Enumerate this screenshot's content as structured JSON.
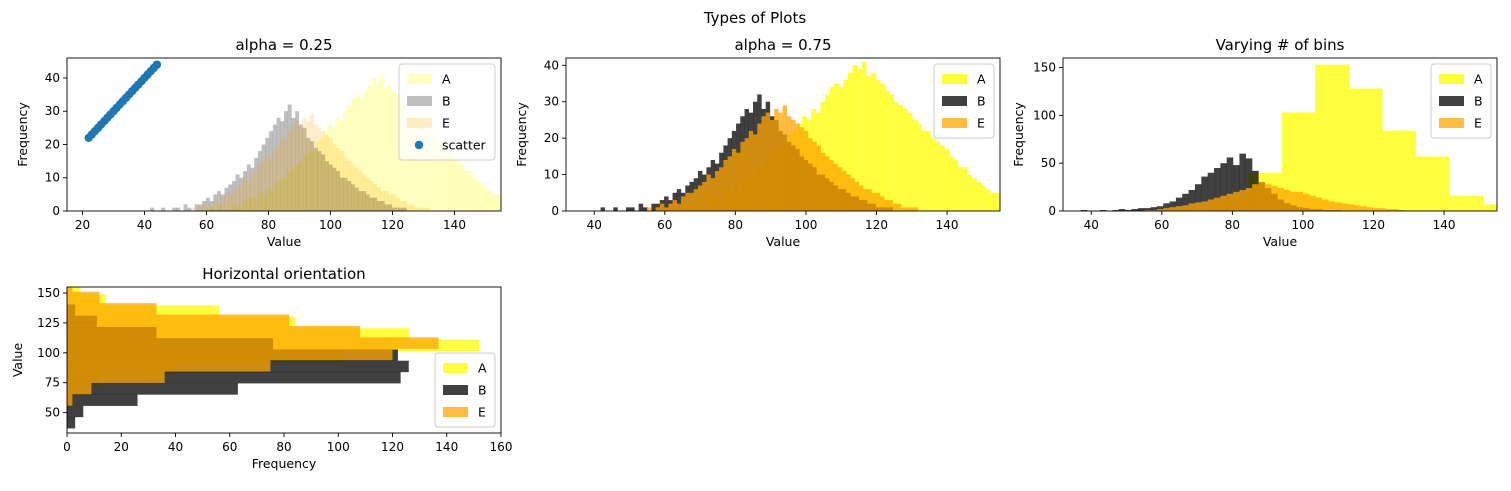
{
  "figure": {
    "suptitle": "Types of Plots"
  },
  "chart_data": [
    {
      "type": "histogram-scatter",
      "title": "alpha = 0.25",
      "xlabel": "Value",
      "ylabel": "Frequency",
      "xlim": [
        15,
        155
      ],
      "ylim": [
        0,
        46
      ],
      "xticks": [
        20,
        40,
        60,
        80,
        100,
        120,
        140
      ],
      "yticks": [
        0,
        10,
        20,
        30,
        40
      ],
      "legend": {
        "position": "upper right"
      },
      "series": [
        {
          "name": "A",
          "kind": "hist",
          "color": "#ffff00",
          "alpha": 0.25,
          "start": 56,
          "width": 1.3,
          "values": [
            0,
            0,
            0,
            0,
            1,
            0,
            2,
            0,
            1,
            2,
            2,
            1,
            3,
            4,
            4,
            3,
            6,
            5,
            7,
            6,
            9,
            9,
            10,
            12,
            13,
            14,
            15,
            17,
            18,
            18,
            21,
            22,
            24,
            26,
            25,
            28,
            27,
            30,
            32,
            34,
            35,
            34,
            36,
            38,
            40,
            39,
            41,
            37,
            38,
            36,
            35,
            33,
            32,
            30,
            29,
            28,
            27,
            25,
            24,
            22,
            22,
            20,
            19,
            18,
            17,
            15,
            14,
            12,
            12,
            10,
            9,
            8,
            7,
            6,
            5,
            5,
            4,
            3,
            3,
            2,
            2,
            1,
            1,
            1
          ]
        },
        {
          "name": "B",
          "kind": "hist",
          "color": "#000000",
          "alpha": 0.25,
          "start": 37,
          "width": 1.2,
          "values": [
            0,
            0,
            0,
            0,
            1,
            0,
            0,
            1,
            0,
            0,
            1,
            1,
            0,
            2,
            1,
            0,
            2,
            2,
            3,
            4,
            3,
            5,
            6,
            5,
            7,
            8,
            9,
            11,
            10,
            12,
            14,
            13,
            16,
            18,
            20,
            22,
            24,
            26,
            28,
            27,
            30,
            32,
            28,
            30,
            26,
            25,
            22,
            21,
            19,
            18,
            17,
            15,
            14,
            13,
            12,
            10,
            10,
            9,
            8,
            7,
            6,
            6,
            5,
            4,
            4,
            3,
            3,
            2,
            2,
            1,
            1,
            1,
            1
          ]
        },
        {
          "name": "E",
          "kind": "hist",
          "color": "#ffa500",
          "alpha": 0.2,
          "start": 55,
          "width": 1.2,
          "values": [
            1,
            0,
            1,
            2,
            1,
            2,
            3,
            2,
            4,
            5,
            5,
            6,
            7,
            8,
            10,
            9,
            11,
            12,
            14,
            15,
            17,
            16,
            19,
            20,
            22,
            21,
            24,
            26,
            27,
            25,
            28,
            27,
            29,
            26,
            25,
            24,
            23,
            22,
            20,
            19,
            18,
            16,
            15,
            14,
            13,
            12,
            11,
            10,
            9,
            8,
            7,
            6,
            6,
            5,
            5,
            4,
            3,
            3,
            2,
            2,
            1,
            1,
            1,
            1
          ]
        },
        {
          "name": "scatter",
          "kind": "scatter",
          "color": "#1f77b4",
          "x": [
            22,
            23,
            24,
            25,
            26,
            27,
            28,
            29,
            30,
            31,
            32,
            33,
            34,
            35,
            36,
            37,
            38,
            39,
            40,
            41,
            42,
            43,
            44
          ],
          "y": [
            22,
            23,
            24,
            25,
            26,
            27,
            28,
            29,
            30,
            31,
            32,
            33,
            34,
            35,
            36,
            37,
            38,
            39,
            40,
            41,
            42,
            43,
            44
          ]
        }
      ]
    },
    {
      "type": "histogram",
      "title": "alpha = 0.75",
      "xlabel": "Value",
      "ylabel": "Frequency",
      "xlim": [
        32,
        155
      ],
      "ylim": [
        0,
        42
      ],
      "xticks": [
        40,
        60,
        80,
        100,
        120,
        140
      ],
      "yticks": [
        0,
        10,
        20,
        30,
        40
      ],
      "legend": {
        "position": "upper right"
      },
      "series": [
        {
          "name": "A",
          "kind": "hist",
          "color": "#ffff00",
          "alpha": 0.75,
          "start": 56,
          "width": 1.3,
          "values": [
            0,
            0,
            0,
            0,
            1,
            0,
            2,
            0,
            1,
            2,
            2,
            1,
            3,
            4,
            4,
            3,
            6,
            5,
            7,
            6,
            9,
            9,
            10,
            12,
            13,
            14,
            15,
            17,
            18,
            18,
            21,
            22,
            24,
            26,
            25,
            28,
            27,
            30,
            32,
            34,
            35,
            34,
            36,
            38,
            40,
            39,
            41,
            37,
            38,
            36,
            35,
            33,
            32,
            30,
            29,
            28,
            27,
            25,
            24,
            22,
            22,
            20,
            19,
            18,
            17,
            15,
            14,
            12,
            12,
            10,
            9,
            8,
            7,
            6,
            5,
            5,
            4,
            3,
            3,
            2,
            2,
            1,
            1,
            1
          ]
        },
        {
          "name": "B",
          "kind": "hist",
          "color": "#000000",
          "alpha": 0.75,
          "start": 37,
          "width": 1.2,
          "values": [
            0,
            0,
            0,
            0,
            1,
            0,
            0,
            1,
            0,
            0,
            1,
            1,
            0,
            2,
            1,
            0,
            2,
            2,
            3,
            4,
            3,
            5,
            6,
            5,
            7,
            8,
            9,
            11,
            10,
            12,
            14,
            13,
            16,
            18,
            20,
            22,
            24,
            26,
            28,
            27,
            30,
            32,
            28,
            30,
            26,
            25,
            22,
            21,
            19,
            18,
            17,
            15,
            14,
            13,
            12,
            10,
            10,
            9,
            8,
            7,
            6,
            6,
            5,
            4,
            4,
            3,
            3,
            2,
            2,
            1,
            1,
            1,
            1
          ]
        },
        {
          "name": "E",
          "kind": "hist",
          "color": "#ffa500",
          "alpha": 0.75,
          "start": 55,
          "width": 1.2,
          "values": [
            1,
            0,
            1,
            2,
            1,
            2,
            3,
            2,
            4,
            5,
            5,
            6,
            7,
            8,
            10,
            9,
            11,
            12,
            14,
            15,
            17,
            16,
            19,
            20,
            22,
            21,
            24,
            26,
            27,
            25,
            28,
            27,
            29,
            26,
            25,
            24,
            23,
            22,
            20,
            19,
            18,
            16,
            15,
            14,
            13,
            12,
            11,
            10,
            9,
            8,
            7,
            6,
            6,
            5,
            5,
            4,
            3,
            3,
            2,
            2,
            1,
            1,
            1,
            1
          ]
        }
      ]
    },
    {
      "type": "histogram",
      "title": "Varying # of bins",
      "xlabel": "Value",
      "ylabel": "Frequency",
      "xlim": [
        32,
        155
      ],
      "ylim": [
        0,
        160
      ],
      "xticks": [
        40,
        60,
        80,
        100,
        120,
        140
      ],
      "yticks": [
        0,
        50,
        100,
        150
      ],
      "legend": {
        "position": "upper right"
      },
      "series": [
        {
          "name": "A",
          "kind": "hist",
          "color": "#ffff00",
          "alpha": 0.75,
          "start": 56,
          "width": 9.5,
          "values": [
            1,
            3,
            12,
            40,
            103,
            153,
            128,
            84,
            57,
            16,
            7
          ]
        },
        {
          "name": "B",
          "kind": "hist",
          "color": "#000000",
          "alpha": 0.75,
          "start": 37,
          "width": 1.8,
          "values": [
            1,
            0,
            0,
            1,
            0,
            1,
            2,
            1,
            2,
            3,
            3,
            4,
            5,
            8,
            10,
            14,
            18,
            22,
            28,
            36,
            40,
            45,
            50,
            56,
            48,
            60,
            55,
            42,
            30,
            24,
            18,
            12,
            8,
            6,
            4,
            3,
            2,
            2,
            1,
            1,
            1
          ]
        },
        {
          "name": "E",
          "kind": "hist",
          "color": "#ffa500",
          "alpha": 0.75,
          "start": 55,
          "width": 1.8,
          "values": [
            1,
            1,
            2,
            3,
            4,
            5,
            6,
            8,
            9,
            10,
            12,
            14,
            16,
            18,
            20,
            22,
            24,
            28,
            30,
            28,
            26,
            24,
            22,
            20,
            20,
            18,
            16,
            14,
            12,
            10,
            9,
            8,
            7,
            6,
            5,
            4,
            3,
            3,
            2,
            2,
            1
          ]
        }
      ]
    },
    {
      "type": "histogram-horizontal",
      "title": "Horizontal orientation",
      "xlabel": "Frequency",
      "ylabel": "Value",
      "xlim": [
        0,
        160
      ],
      "ylim": [
        33,
        155
      ],
      "xticks": [
        0,
        20,
        40,
        60,
        80,
        100,
        120,
        140,
        160
      ],
      "yticks": [
        50,
        75,
        100,
        125,
        150
      ],
      "legend": {
        "position": "lower right"
      },
      "series": [
        {
          "name": "A",
          "kind": "hist",
          "color": "#ffff00",
          "alpha": 0.75,
          "start": 54,
          "width": 9.5,
          "values": [
            1,
            3,
            12,
            40,
            102,
            152,
            126,
            84,
            56,
            14,
            5
          ]
        },
        {
          "name": "B",
          "kind": "hist",
          "color": "#000000",
          "alpha": 0.75,
          "start": 37,
          "width": 9.4,
          "values": [
            3,
            6,
            26,
            63,
            123,
            126,
            122,
            76,
            33,
            11,
            3
          ]
        },
        {
          "name": "E",
          "kind": "hist",
          "color": "#ffa500",
          "alpha": 0.75,
          "start": 56,
          "width": 9.5,
          "values": [
            2,
            9,
            36,
            75,
            120,
            137,
            108,
            82,
            33,
            12,
            2
          ]
        }
      ]
    }
  ]
}
